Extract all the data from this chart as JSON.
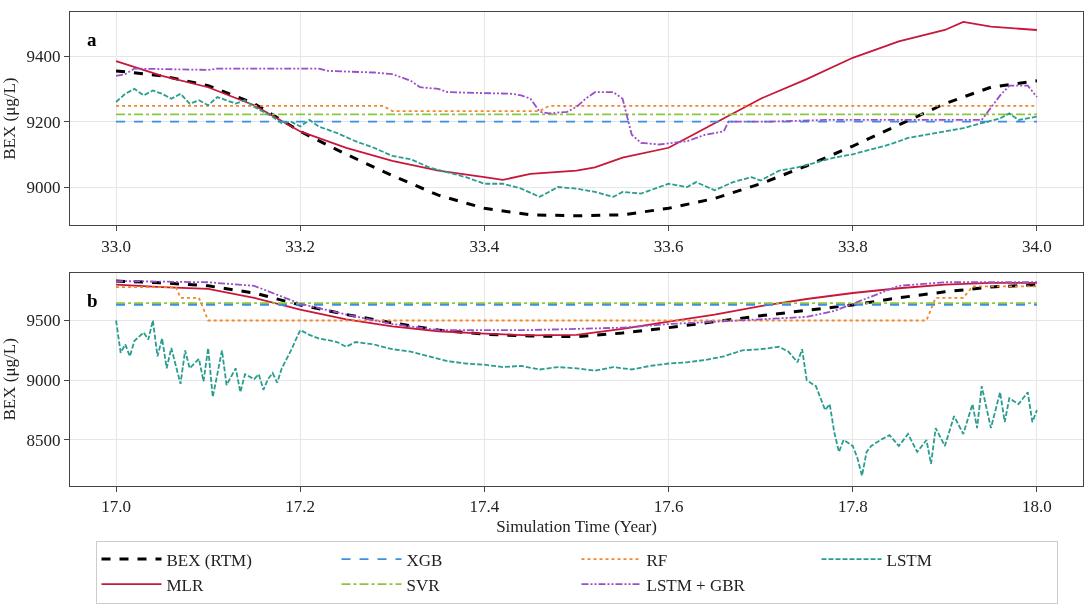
{
  "chart_data": [
    {
      "type": "line",
      "ylabel": "BEX (μg/L)",
      "annotations": [
        "a"
      ],
      "xlim": [
        32.95,
        34.05
      ],
      "xticks": [
        {
          "value": 33.0,
          "label": "33.0"
        },
        {
          "value": 33.2,
          "label": "33.2"
        },
        {
          "value": 33.4,
          "label": "33.4"
        },
        {
          "value": 33.6,
          "label": "33.6"
        },
        {
          "value": 33.8,
          "label": "33.8"
        },
        {
          "value": 34.0,
          "label": "34.0"
        }
      ],
      "ylim": [
        8883,
        9535
      ],
      "yticks": [
        9000,
        9200,
        9400
      ],
      "grid": true,
      "legend": "bottom",
      "series": [
        {
          "name": "BEX (RTM)",
          "color": "#000000",
          "line_style": "dashed",
          "x": [
            33.0,
            33.05,
            33.1,
            33.15,
            33.2,
            33.25,
            33.3,
            33.35,
            33.4,
            33.45,
            33.5,
            33.55,
            33.6,
            33.65,
            33.7,
            33.75,
            33.8,
            33.85,
            33.9,
            33.95,
            34.0
          ],
          "values": [
            9355,
            9340,
            9310,
            9255,
            9170,
            9100,
            9035,
            8975,
            8935,
            8915,
            8912,
            8915,
            8935,
            8965,
            9010,
            9065,
            9125,
            9190,
            9255,
            9305,
            9325
          ]
        },
        {
          "name": "MLR",
          "color": "#c8173a",
          "line_style": "solid",
          "x": [
            33.0,
            33.05,
            33.1,
            33.15,
            33.2,
            33.25,
            33.3,
            33.35,
            33.4,
            33.42,
            33.45,
            33.5,
            33.52,
            33.55,
            33.6,
            33.62,
            33.65,
            33.7,
            33.75,
            33.8,
            33.85,
            33.9,
            33.92,
            33.95,
            34.0
          ],
          "values": [
            9385,
            9340,
            9305,
            9250,
            9170,
            9120,
            9080,
            9050,
            9030,
            9022,
            9040,
            9050,
            9060,
            9090,
            9120,
            9150,
            9195,
            9270,
            9330,
            9395,
            9445,
            9480,
            9505,
            9490,
            9480
          ]
        },
        {
          "name": "XGB",
          "color": "#3b8ee5",
          "line_style": "dashed",
          "x": [
            33.0,
            34.0
          ],
          "values": [
            9200,
            9200
          ]
        },
        {
          "name": "SVR",
          "color": "#8cc63e",
          "line_style": "dashdot",
          "x": [
            33.0,
            34.0
          ],
          "values": [
            9222,
            9222
          ]
        },
        {
          "name": "RF",
          "color": "#f5862b",
          "line_style": "dotted",
          "x": [
            33.0,
            33.29,
            33.3,
            33.46,
            33.47,
            34.0
          ],
          "values": [
            9248,
            9248,
            9232,
            9232,
            9248,
            9248
          ]
        },
        {
          "name": "LSTM + GBR",
          "color": "#9a4fc9",
          "line_style": "dashdotdot",
          "x": [
            33.0,
            33.01,
            33.02,
            33.1,
            33.11,
            33.22,
            33.23,
            33.28,
            33.3,
            33.32,
            33.33,
            33.35,
            33.36,
            33.43,
            33.44,
            33.45,
            33.46,
            33.47,
            33.49,
            33.5,
            33.51,
            33.52,
            33.54,
            33.55,
            33.56,
            33.57,
            33.59,
            33.62,
            33.64,
            33.66,
            33.665,
            33.71,
            33.77,
            33.94,
            33.96,
            33.97,
            33.99,
            34.0
          ],
          "values": [
            9340,
            9345,
            9362,
            9358,
            9362,
            9362,
            9355,
            9350,
            9345,
            9325,
            9305,
            9300,
            9290,
            9285,
            9280,
            9270,
            9230,
            9225,
            9230,
            9245,
            9270,
            9290,
            9290,
            9270,
            9160,
            9135,
            9130,
            9140,
            9160,
            9170,
            9200,
            9200,
            9205,
            9205,
            9280,
            9310,
            9310,
            9275
          ]
        },
        {
          "name": "LSTM",
          "color": "#2a9d8f",
          "line_style": "longdash",
          "x": [
            33.0,
            33.01,
            33.02,
            33.03,
            33.04,
            33.05,
            33.06,
            33.07,
            33.08,
            33.09,
            33.1,
            33.11,
            33.12,
            33.13,
            33.14,
            33.15,
            33.16,
            33.17,
            33.18,
            33.19,
            33.2,
            33.21,
            33.22,
            33.24,
            33.26,
            33.28,
            33.3,
            33.32,
            33.34,
            33.36,
            33.38,
            33.4,
            33.42,
            33.44,
            33.46,
            33.47,
            33.48,
            33.5,
            33.52,
            33.54,
            33.55,
            33.57,
            33.6,
            33.62,
            33.63,
            33.65,
            33.67,
            33.69,
            33.7,
            33.72,
            33.74,
            33.76,
            33.78,
            33.8,
            33.82,
            33.84,
            33.86,
            33.88,
            33.9,
            33.92,
            33.94,
            33.96,
            33.97,
            33.98,
            34.0
          ],
          "values": [
            9260,
            9285,
            9300,
            9280,
            9295,
            9285,
            9270,
            9285,
            9255,
            9265,
            9250,
            9275,
            9265,
            9255,
            9265,
            9245,
            9230,
            9215,
            9195,
            9200,
            9185,
            9205,
            9185,
            9165,
            9140,
            9120,
            9095,
            9085,
            9060,
            9045,
            9030,
            9010,
            9010,
            8995,
            8970,
            8985,
            9000,
            8995,
            8985,
            8970,
            8985,
            8980,
            9010,
            9000,
            9015,
            8990,
            9015,
            9030,
            9020,
            9050,
            9060,
            9075,
            9090,
            9100,
            9115,
            9130,
            9150,
            9160,
            9170,
            9180,
            9195,
            9210,
            9225,
            9205,
            9215
          ]
        }
      ]
    },
    {
      "type": "line",
      "ylabel": "BEX (μg/L)",
      "xlabel": "Simulation Time (Year)",
      "annotations": [
        "b"
      ],
      "xlim": [
        16.95,
        18.05
      ],
      "xticks": [
        {
          "value": 17.0,
          "label": "17.0"
        },
        {
          "value": 17.2,
          "label": "17.2"
        },
        {
          "value": 17.4,
          "label": "17.4"
        },
        {
          "value": 17.6,
          "label": "17.6"
        },
        {
          "value": 17.8,
          "label": "17.8"
        },
        {
          "value": 18.0,
          "label": "18.0"
        }
      ],
      "ylim": [
        8115,
        9900
      ],
      "yticks": [
        8500,
        9000,
        9500
      ],
      "grid": true,
      "series": [
        {
          "color": "#000000",
          "line_style": "dashed",
          "x": [
            17.0,
            17.05,
            17.1,
            17.15,
            17.2,
            17.25,
            17.3,
            17.35,
            17.4,
            17.45,
            17.5,
            17.55,
            17.6,
            17.65,
            17.7,
            17.75,
            17.8,
            17.85,
            17.9,
            17.95,
            18.0
          ],
          "values": [
            9830,
            9815,
            9790,
            9730,
            9630,
            9550,
            9480,
            9420,
            9385,
            9370,
            9365,
            9395,
            9440,
            9490,
            9540,
            9585,
            9630,
            9690,
            9740,
            9780,
            9800
          ]
        },
        {
          "color": "#c8173a",
          "line_style": "solid",
          "x": [
            17.0,
            17.05,
            17.1,
            17.15,
            17.2,
            17.25,
            17.3,
            17.35,
            17.4,
            17.45,
            17.5,
            17.55,
            17.6,
            17.65,
            17.7,
            17.75,
            17.8,
            17.85,
            17.9,
            17.95,
            18.0
          ],
          "values": [
            9800,
            9780,
            9765,
            9690,
            9590,
            9510,
            9450,
            9410,
            9390,
            9375,
            9380,
            9430,
            9490,
            9550,
            9620,
            9680,
            9730,
            9770,
            9800,
            9815,
            9815
          ]
        },
        {
          "color": "#3b8ee5",
          "line_style": "dashed",
          "x": [
            17.0,
            18.0
          ],
          "values": [
            9630,
            9630
          ]
        },
        {
          "color": "#8cc63e",
          "line_style": "dashdot",
          "x": [
            17.0,
            18.0
          ],
          "values": [
            9645,
            9645
          ]
        },
        {
          "color": "#f5862b",
          "line_style": "dotted",
          "x": [
            17.0,
            17.065,
            17.07,
            17.09,
            17.1,
            17.88,
            17.89,
            17.92,
            17.93,
            18.0
          ],
          "values": [
            9780,
            9780,
            9690,
            9690,
            9500,
            9500,
            9690,
            9690,
            9785,
            9785
          ]
        },
        {
          "color": "#9a4fc9",
          "line_style": "dashdotdot",
          "x": [
            17.0,
            17.1,
            17.15,
            17.2,
            17.25,
            17.3,
            17.35,
            17.45,
            17.55,
            17.6,
            17.7,
            17.75,
            17.78,
            17.8,
            17.82,
            17.85,
            17.9,
            18.0
          ],
          "values": [
            9830,
            9820,
            9790,
            9640,
            9550,
            9470,
            9420,
            9420,
            9440,
            9470,
            9510,
            9530,
            9580,
            9640,
            9700,
            9790,
            9820,
            9820
          ]
        },
        {
          "color": "#2a9d8f",
          "line_style": "longdash",
          "x": [
            17.0,
            17.005,
            17.01,
            17.015,
            17.02,
            17.03,
            17.035,
            17.04,
            17.045,
            17.05,
            17.055,
            17.06,
            17.065,
            17.07,
            17.075,
            17.08,
            17.09,
            17.095,
            17.1,
            17.105,
            17.11,
            17.115,
            17.12,
            17.13,
            17.135,
            17.14,
            17.15,
            17.155,
            17.16,
            17.165,
            17.17,
            17.175,
            17.18,
            17.19,
            17.2,
            17.21,
            17.22,
            17.24,
            17.25,
            17.26,
            17.28,
            17.3,
            17.32,
            17.34,
            17.36,
            17.38,
            17.4,
            17.42,
            17.44,
            17.46,
            17.48,
            17.5,
            17.52,
            17.54,
            17.56,
            17.58,
            17.6,
            17.62,
            17.64,
            17.66,
            17.68,
            17.7,
            17.72,
            17.73,
            17.74,
            17.745,
            17.75,
            17.76,
            17.77,
            17.775,
            17.78,
            17.785,
            17.79,
            17.8,
            17.805,
            17.81,
            17.815,
            17.82,
            17.83,
            17.84,
            17.85,
            17.86,
            17.87,
            17.88,
            17.885,
            17.89,
            17.9,
            17.91,
            17.92,
            17.93,
            17.935,
            17.94,
            17.95,
            17.96,
            17.965,
            17.97,
            17.98,
            17.99,
            17.995,
            18.0
          ],
          "values": [
            9500,
            9230,
            9300,
            9200,
            9330,
            9400,
            9340,
            9500,
            9200,
            9350,
            9100,
            9270,
            9120,
            8970,
            9250,
            9100,
            9180,
            8990,
            9270,
            8860,
            9050,
            9250,
            8960,
            9100,
            8900,
            9050,
            9010,
            9050,
            8920,
            9010,
            9060,
            8980,
            9100,
            9250,
            9420,
            9380,
            9350,
            9320,
            9280,
            9320,
            9300,
            9260,
            9240,
            9200,
            9160,
            9140,
            9130,
            9110,
            9120,
            9090,
            9110,
            9100,
            9080,
            9110,
            9090,
            9120,
            9140,
            9150,
            9170,
            9200,
            9250,
            9260,
            9280,
            9240,
            9150,
            9260,
            9000,
            8950,
            8750,
            8800,
            8560,
            8400,
            8500,
            8450,
            8350,
            8200,
            8400,
            8450,
            8500,
            8540,
            8450,
            8550,
            8400,
            8500,
            8300,
            8600,
            8450,
            8700,
            8550,
            8800,
            8600,
            8950,
            8600,
            8900,
            8650,
            8850,
            8800,
            8900,
            8650,
            8750
          ]
        }
      ]
    }
  ]
}
